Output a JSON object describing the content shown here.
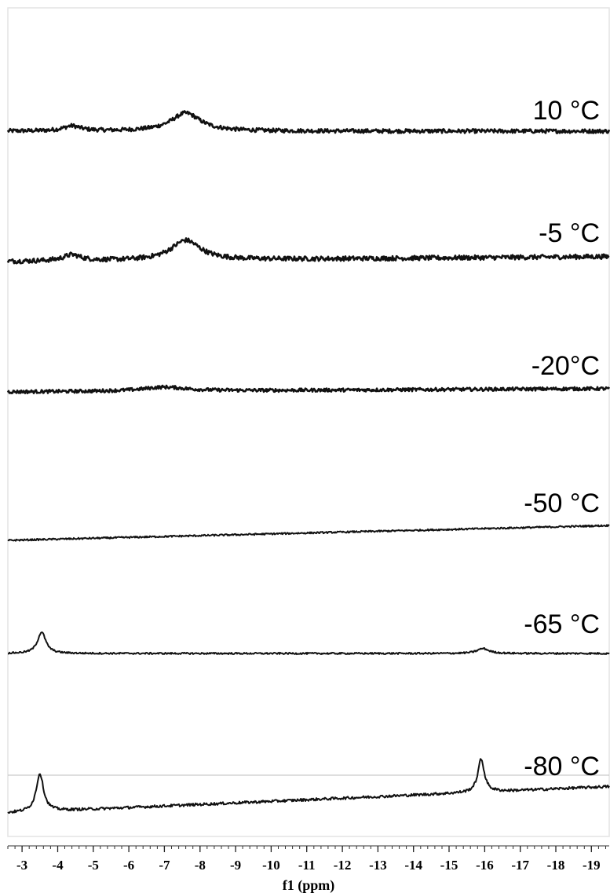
{
  "chart_data": {
    "type": "line",
    "title": "",
    "xlabel": "f1 (ppm)",
    "ylabel": "",
    "x_reversed": true,
    "xlim": [
      -2.6,
      -19.5
    ],
    "x_ticks": [
      -3,
      -4,
      -5,
      -6,
      -7,
      -8,
      -9,
      -10,
      -11,
      -12,
      -13,
      -14,
      -15,
      -16,
      -17,
      -18,
      -19
    ],
    "x_tick_labels": [
      "-3",
      "-4",
      "-5",
      "-6",
      "-7",
      "-8",
      "-9",
      "-10",
      "-11",
      "-12",
      "-13",
      "-14",
      "-15",
      "-16",
      "-17",
      "-18",
      "-19"
    ],
    "grid": false,
    "legend": "none",
    "series": [
      {
        "name": "10 °C",
        "baseline": [
          0.0,
          0.0
        ],
        "peaks": [
          {
            "center": -4.4,
            "height": 0.15,
            "width": 0.6
          },
          {
            "center": -7.6,
            "height": 0.55,
            "width": 1.0
          }
        ],
        "noise": 0.12
      },
      {
        "name": "-5 °C",
        "baseline": [
          0.0,
          0.15
        ],
        "peaks": [
          {
            "center": -4.4,
            "height": 0.18,
            "width": 0.6
          },
          {
            "center": -7.6,
            "height": 0.6,
            "width": 1.0
          }
        ],
        "noise": 0.14
      },
      {
        "name": "-20°C",
        "baseline": [
          0.0,
          0.1
        ],
        "peaks": [
          {
            "center": -7.0,
            "height": 0.12,
            "width": 1.5
          }
        ],
        "noise": 0.1
      },
      {
        "name": "-50 °C",
        "baseline": [
          0.0,
          0.45
        ],
        "peaks": [],
        "noise": 0.05
      },
      {
        "name": "-65 °C",
        "baseline": [
          0.0,
          0.0
        ],
        "peaks": [
          {
            "center": -3.55,
            "height": 0.65,
            "width": 0.28
          },
          {
            "center": -15.95,
            "height": 0.15,
            "width": 0.4
          }
        ],
        "noise": 0.05
      },
      {
        "name": "-80 °C",
        "baseline": [
          0.0,
          0.8
        ],
        "peaks": [
          {
            "center": -3.5,
            "height": 1.15,
            "width": 0.25
          },
          {
            "center": -15.9,
            "height": 1.0,
            "width": 0.22
          }
        ],
        "noise": 0.08
      }
    ]
  }
}
